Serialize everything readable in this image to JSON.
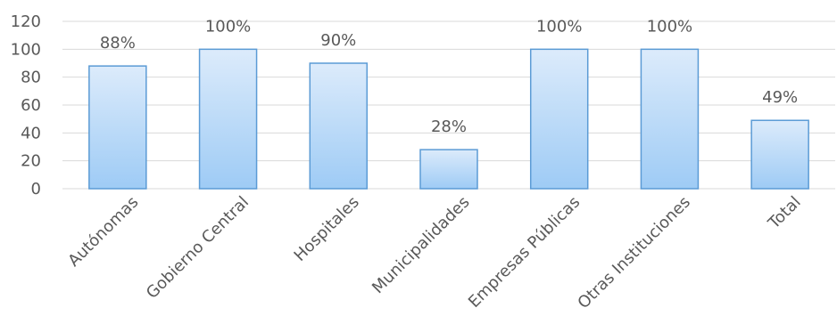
{
  "chart_data": {
    "type": "bar",
    "categories": [
      "Autónomas",
      "Gobierno Central",
      "Hospitales",
      "Municipalidades",
      "Empresas Públicas",
      "Otras Instituciones",
      "Total"
    ],
    "values": [
      88,
      100,
      90,
      28,
      100,
      100,
      49
    ],
    "data_labels": [
      "88%",
      "100%",
      "90%",
      "28%",
      "100%",
      "100%",
      "49%"
    ],
    "y_ticks": [
      0,
      20,
      40,
      60,
      80,
      100,
      120
    ],
    "ylim": [
      0,
      120
    ],
    "grid": true,
    "legend": "none",
    "colors": {
      "bar_top": "#dcebfb",
      "bar_bottom": "#9ecbf5",
      "bar_stroke": "#5b9bd5",
      "grid": "#d9d9d9",
      "text": "#595959"
    }
  }
}
